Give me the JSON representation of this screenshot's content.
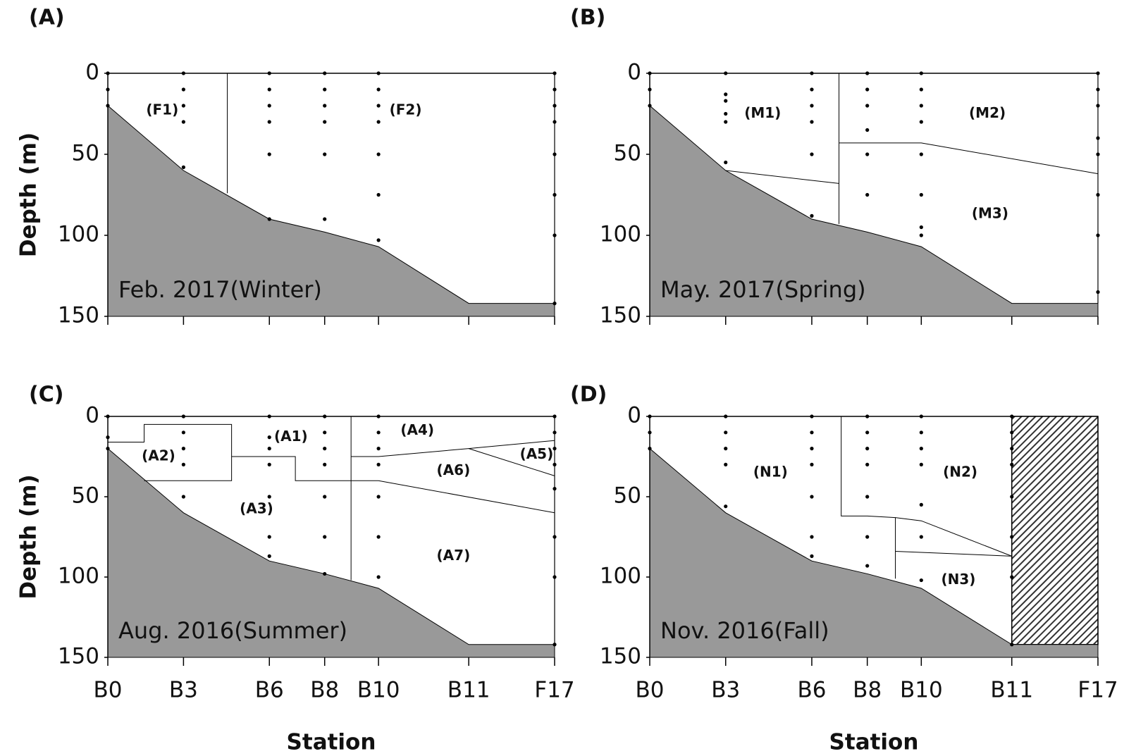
{
  "chart_data": [
    {
      "type": "section",
      "label": "(A)",
      "title": "Feb. 2017(Winter)",
      "ylabel": "Depth (m)",
      "ylim": [
        0,
        150
      ],
      "yticks": [
        0,
        50,
        100,
        150
      ],
      "bottom": [
        20,
        60,
        90,
        98,
        107,
        142,
        142
      ],
      "samples": [
        [
          0,
          10,
          20
        ],
        [
          0,
          10,
          20,
          30,
          58
        ],
        [
          0,
          10,
          20,
          30,
          50,
          90
        ],
        [
          0,
          10,
          20,
          30,
          50,
          90
        ],
        [
          0,
          10,
          20,
          30,
          50,
          75,
          103
        ],
        [],
        [
          0,
          10,
          20,
          30,
          50,
          75,
          100,
          142
        ]
      ],
      "boundaries": [
        [
          [
            1.51,
            0
          ],
          [
            1.51,
            74
          ]
        ]
      ],
      "zones": [
        "(F1)",
        "(F2)"
      ]
    },
    {
      "type": "section",
      "label": "(B)",
      "title": "May. 2017(Spring)",
      "ylim": [
        0,
        150
      ],
      "yticks": [
        0,
        50,
        100,
        150
      ],
      "bottom": [
        20,
        60,
        90,
        98,
        107,
        142,
        142
      ],
      "samples": [
        [
          0,
          10,
          20
        ],
        [
          0,
          13,
          17,
          25,
          30,
          55
        ],
        [
          0,
          10,
          20,
          30,
          50,
          88
        ],
        [
          0,
          10,
          20,
          35,
          50,
          75
        ],
        [
          0,
          10,
          20,
          30,
          50,
          75,
          95,
          100
        ],
        [],
        [
          0,
          10,
          20,
          40,
          50,
          75,
          100,
          135
        ]
      ],
      "boundaries": [
        [
          [
            2.49,
            0
          ],
          [
            2.49,
            93
          ]
        ],
        [
          [
            1,
            60
          ],
          [
            2.49,
            68
          ]
        ],
        [
          [
            2.49,
            43
          ],
          [
            4,
            43
          ],
          [
            6,
            62
          ]
        ]
      ],
      "zones": [
        "(M1)",
        "(M2)",
        "(M3)"
      ]
    },
    {
      "type": "section",
      "label": "(C)",
      "title": "Aug. 2016(Summer)",
      "ylabel": "Depth (m)",
      "xlabel": "Station",
      "categories": [
        "B0",
        "B3",
        "B6",
        "B8",
        "B10",
        "B11",
        "F17"
      ],
      "ylim": [
        0,
        150
      ],
      "yticks": [
        0,
        50,
        100,
        150
      ],
      "bottom": [
        20,
        60,
        90,
        98,
        107,
        142,
        142
      ],
      "samples": [
        [
          0,
          13,
          20
        ],
        [
          0,
          10,
          20,
          30,
          50
        ],
        [
          0,
          13,
          20,
          30,
          50,
          75,
          87
        ],
        [
          0,
          10,
          20,
          30,
          50,
          75,
          98
        ],
        [
          0,
          10,
          20,
          30,
          50,
          75,
          100
        ],
        [],
        [
          0,
          10,
          20,
          30,
          45,
          75,
          100,
          142
        ]
      ],
      "boundaries": [
        [
          [
            0,
            16
          ],
          [
            0.48,
            16
          ],
          [
            0.48,
            5
          ],
          [
            1.56,
            5
          ],
          [
            1.56,
            40
          ],
          [
            0.48,
            40
          ]
        ],
        [
          [
            1.56,
            25
          ],
          [
            2.47,
            25
          ],
          [
            2.47,
            40
          ],
          [
            3.49,
            40
          ],
          [
            4,
            40
          ],
          [
            6,
            60
          ]
        ],
        [
          [
            3.49,
            0
          ],
          [
            3.49,
            102
          ]
        ],
        [
          [
            3.49,
            25
          ],
          [
            4,
            25
          ],
          [
            5,
            20
          ],
          [
            6,
            15
          ]
        ],
        [
          [
            5,
            20
          ],
          [
            6,
            37
          ]
        ]
      ],
      "zones": [
        "(A1)",
        "(A2)",
        "(A3)",
        "(A4)",
        "(A5)",
        "(A6)",
        "(A7)"
      ]
    },
    {
      "type": "section",
      "label": "(D)",
      "title": "Nov. 2016(Fall)",
      "xlabel": "Station",
      "categories": [
        "B0",
        "B3",
        "B6",
        "B8",
        "B10",
        "B11",
        "F17"
      ],
      "ylim": [
        0,
        150
      ],
      "yticks": [
        0,
        50,
        100,
        150
      ],
      "hatch": true,
      "bottom": [
        20,
        60,
        90,
        98,
        107,
        142,
        142
      ],
      "samples": [
        [
          0,
          10,
          20
        ],
        [
          0,
          10,
          20,
          30,
          56
        ],
        [
          0,
          10,
          20,
          30,
          50,
          75,
          87
        ],
        [
          0,
          10,
          20,
          30,
          50,
          75,
          93
        ],
        [
          0,
          10,
          20,
          30,
          55,
          75,
          102
        ],
        [
          0,
          10,
          20,
          30,
          50,
          75,
          100,
          142
        ],
        []
      ],
      "boundaries": [
        [
          [
            2.53,
            0
          ],
          [
            2.53,
            62
          ],
          [
            3,
            62
          ],
          [
            3.52,
            63
          ],
          [
            4,
            65
          ],
          [
            5,
            87
          ]
        ],
        [
          [
            3.52,
            63
          ],
          [
            3.52,
            101
          ]
        ],
        [
          [
            3.52,
            84
          ],
          [
            5,
            87
          ]
        ],
        [
          [
            5,
            0
          ],
          [
            5,
            142
          ]
        ]
      ],
      "zones": [
        "(N1)",
        "(N2)",
        "(N3)"
      ]
    }
  ]
}
